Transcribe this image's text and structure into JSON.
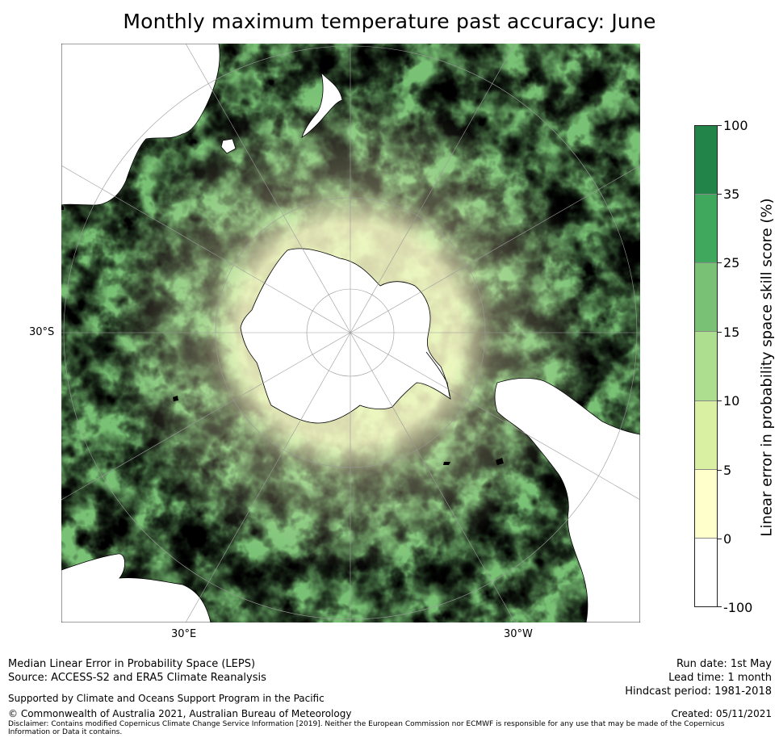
{
  "title": "Monthly maximum temperature past accuracy: June",
  "map": {
    "projection": "south-polar-stereographic",
    "lat_label": "30°S",
    "lon_labels": {
      "east": "30°E",
      "west": "30°W"
    },
    "land_color": "#ffffff",
    "coastline_color": "#000000",
    "gridline_color": "#9a9a9a"
  },
  "colorbar": {
    "title": "Linear error in probability space skill score (%)",
    "levels": [
      "100",
      "35",
      "25",
      "15",
      "10",
      "5",
      "0",
      "-100"
    ],
    "colors_top_to_bottom": [
      "#23844a",
      "#40a85c",
      "#79c275",
      "#addd8e",
      "#d9efa2",
      "#ffffcc",
      "#ffffff"
    ]
  },
  "footer": {
    "line1": "Median Linear Error in Probability Space (LEPS)",
    "line2": "Source: ACCESS-S2 and ERA5 Climate Reanalysis",
    "support": "Supported by Climate and Oceans Support Program in the Pacific",
    "copyright": "© Commonwealth of Australia 2021, Australian Bureau of Meteorology",
    "disclaimer": "Disclaimer: Contains modified Copernicus Climate Change Service Information [2019]. Neither the European Commission nor ECMWF is responsible for any use that may be made of the Copernicus Information or Data it contains.",
    "run_date": "Run date: 1st May",
    "lead_time": "Lead time: 1 month",
    "hindcast": "Hindcast period: 1981-2018",
    "created": "Created: 05/11/2021"
  }
}
